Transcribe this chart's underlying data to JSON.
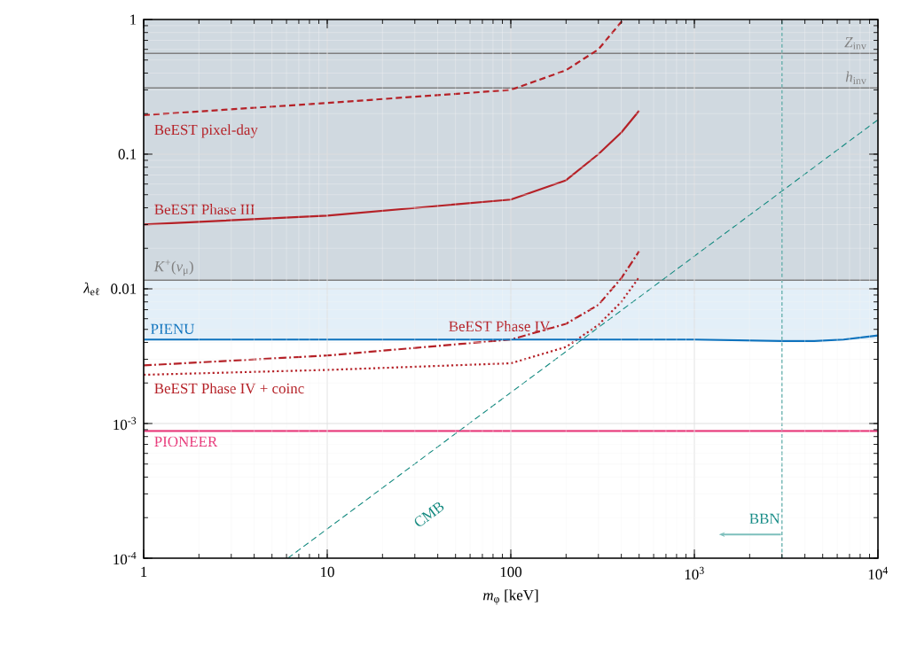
{
  "chart_data": {
    "type": "line",
    "xlabel": "*m*$_{φ}$ [keV]",
    "ylabel": "*λ*$_{eℓ}$",
    "log": "xy",
    "grid": true,
    "legend": false,
    "xlim": [
      1,
      10000
    ],
    "ylim": [
      0.0001,
      1
    ],
    "xticks": [
      1,
      10,
      100,
      {
        "value": 1000,
        "label": "10$^{3}$"
      },
      {
        "value": 10000,
        "label": "10$^{4}$"
      }
    ],
    "yticks": [
      {
        "value": 0.0001,
        "label": "10$^{-4}$"
      },
      {
        "value": 0.001,
        "label": "10$^{-3}$"
      },
      0.01,
      0.1,
      1
    ],
    "bands": [
      {
        "axis": "y",
        "from": 0.0116,
        "to": 1,
        "color": "#d0d9e0"
      },
      {
        "axis": "y",
        "from": 0.0042,
        "to": 0.0116,
        "color": "#e3eff8"
      }
    ],
    "ref_lines": [
      {
        "axis": "x",
        "value": 3000,
        "label": "BBN",
        "color": "#138a85",
        "line_style": "dashed"
      }
    ],
    "series": [
      {
        "name": "*Z*$_{inv}$",
        "color": "#808080",
        "line_style": "solid",
        "x": [
          1,
          10000
        ],
        "values": [
          0.56,
          0.56
        ]
      },
      {
        "name": "*h*$_{inv}$",
        "color": "#808080",
        "line_style": "solid",
        "x": [
          1,
          10000
        ],
        "values": [
          0.31,
          0.31
        ]
      },
      {
        "name": "*K*$^{+}$(*ν*$_{μ}$)",
        "color": "#808080",
        "line_style": "solid",
        "x": [
          1,
          10000
        ],
        "values": [
          0.0116,
          0.0116
        ]
      },
      {
        "name": "BeEST pixel-day",
        "color": "#b52127",
        "line_style": "dashed",
        "x": [
          1,
          10,
          100,
          200,
          300,
          410
        ],
        "values": [
          0.195,
          0.24,
          0.3,
          0.42,
          0.6,
          1.0
        ]
      },
      {
        "name": "BeEST Phase III",
        "color": "#b52127",
        "line_style": "solid",
        "x": [
          1,
          10,
          100,
          200,
          300,
          400,
          500
        ],
        "values": [
          0.03,
          0.035,
          0.046,
          0.064,
          0.1,
          0.145,
          0.21
        ]
      },
      {
        "name": "BeEST Phase IV",
        "color": "#b52127",
        "line_style": "dashdot",
        "x": [
          1,
          10,
          100,
          200,
          300,
          400,
          500
        ],
        "values": [
          0.0027,
          0.0032,
          0.0042,
          0.0055,
          0.0076,
          0.012,
          0.019
        ]
      },
      {
        "name": "BeEST Phase IV + coinc",
        "color": "#b52127",
        "line_style": "dotted",
        "x": [
          1,
          10,
          100,
          200,
          300,
          400,
          500
        ],
        "values": [
          0.0023,
          0.0025,
          0.0028,
          0.0037,
          0.0054,
          0.008,
          0.0122
        ]
      },
      {
        "name": "PIENU",
        "color": "#0d72bd",
        "line_style": "solid",
        "x": [
          1,
          100,
          1000,
          3000,
          4500,
          6500,
          10000
        ],
        "values": [
          0.0042,
          0.0042,
          0.0042,
          0.0041,
          0.0041,
          0.0042,
          0.0045
        ]
      },
      {
        "name": "PIONEER",
        "color": "#e8397a",
        "line_style": "solid",
        "x": [
          1,
          10000
        ],
        "values": [
          0.00088,
          0.00088
        ]
      },
      {
        "name": "CMB",
        "color": "#13897f",
        "line_style": "dashed",
        "x": [
          6.1,
          10000
        ],
        "values": [
          0.0001,
          0.18
        ]
      }
    ]
  }
}
